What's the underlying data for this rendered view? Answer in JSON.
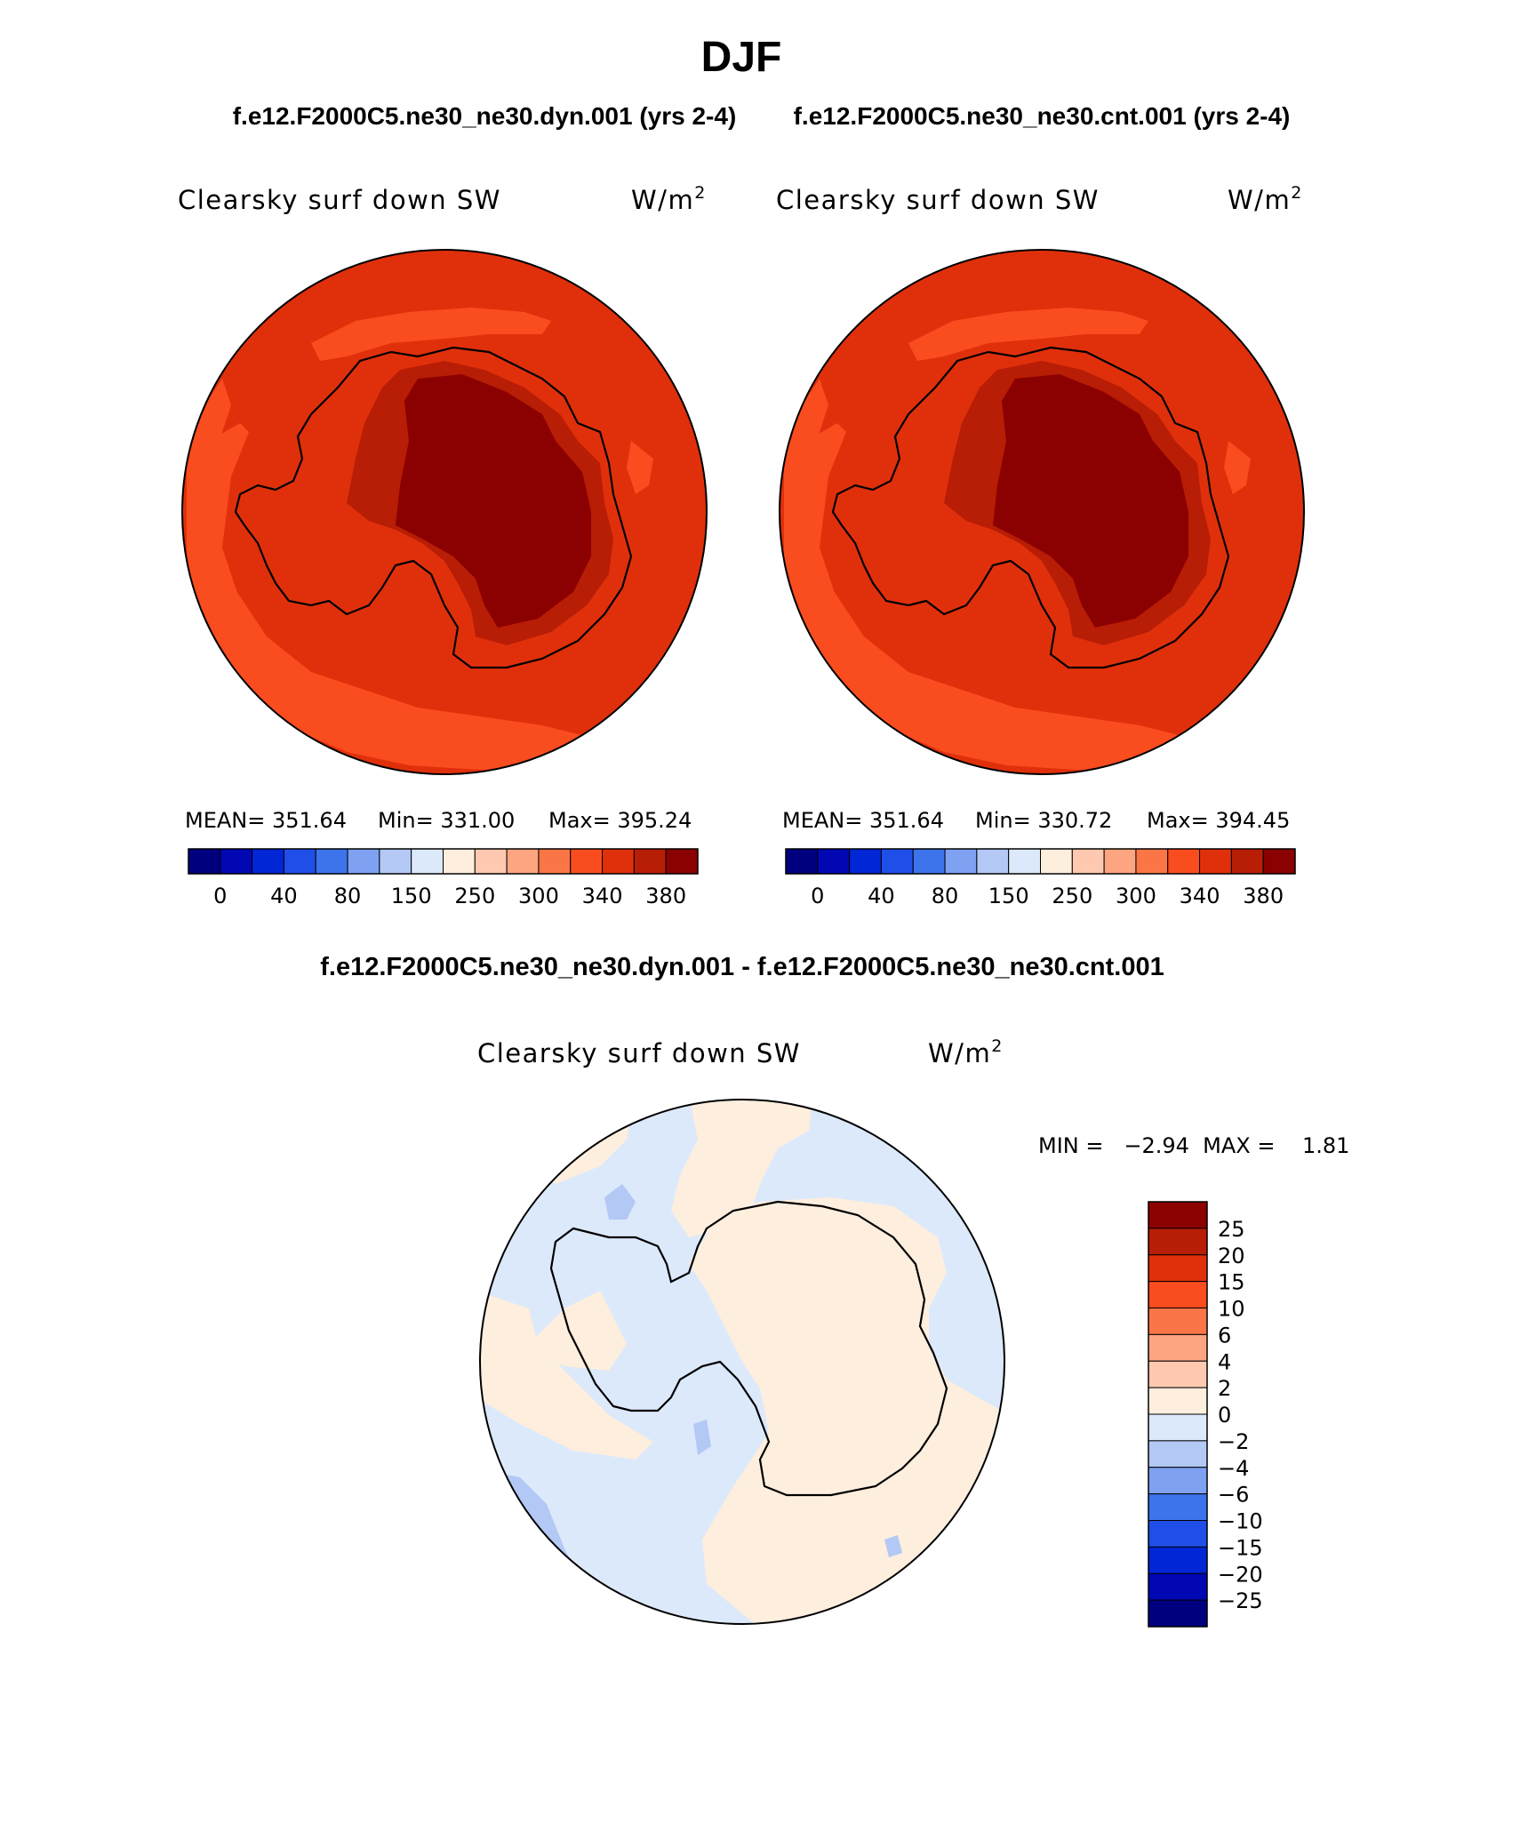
{
  "page": {
    "title": "DJF",
    "subtitle_left": "f.e12.F2000C5.ne30_ne30.dyn.001 (yrs 2-4)",
    "subtitle_right": "f.e12.F2000C5.ne30_ne30.cnt.001 (yrs 2-4)",
    "diff_title": "f.e12.F2000C5.ne30_ne30.dyn.001 - f.e12.F2000C5.ne30_ne30.cnt.001"
  },
  "panels": [
    {
      "variable": "Clearsky surf down SW",
      "units": "W/m",
      "units_exp": "2",
      "stats": {
        "mean": "MEAN= 351.64",
        "min": "Min= 331.00",
        "max": "Max= 395.24"
      }
    },
    {
      "variable": "Clearsky surf down SW",
      "units": "W/m",
      "units_exp": "2",
      "stats": {
        "mean": "MEAN= 351.64",
        "min": "Min= 330.72",
        "max": "Max= 394.45"
      }
    }
  ],
  "abs_colorbar": {
    "colors": [
      "#00007f",
      "#0007b3",
      "#0026d6",
      "#1f4fe8",
      "#3d74ec",
      "#7ea1f2",
      "#b3c8f5",
      "#dce9fb",
      "#feeede",
      "#fec9b0",
      "#fca580",
      "#fb7647",
      "#f94c1f",
      "#e0300b",
      "#b81d05",
      "#8b0000"
    ],
    "labels": [
      "0",
      "40",
      "80",
      "150",
      "250",
      "300",
      "340",
      "380"
    ]
  },
  "diff_panel": {
    "variable": "Clearsky surf down SW",
    "units": "W/m",
    "units_exp": "2",
    "minmax": "MIN =   −2.94  MAX =    1.81"
  },
  "diff_colorbar": {
    "colors_top_to_bottom": [
      "#8b0000",
      "#b81d05",
      "#e0300b",
      "#f94c1f",
      "#fb7647",
      "#fca580",
      "#fec9b0",
      "#feeede",
      "#dce9fb",
      "#b3c8f5",
      "#7ea1f2",
      "#3d74ec",
      "#1f4fe8",
      "#0026d6",
      "#0007b3",
      "#00007f"
    ],
    "labels": [
      "25",
      "20",
      "15",
      "10",
      "6",
      "4",
      "2",
      "0",
      "−2",
      "−4",
      "−6",
      "−10",
      "−15",
      "−20",
      "−25"
    ]
  },
  "map_colors": {
    "ocean_abs": "#e0300b",
    "ocean_abs_light": "#f94c1f",
    "ice_abs_mid": "#b81d05",
    "ice_abs_high": "#8b0000",
    "diff_pos": "#feeede",
    "diff_neg": "#dce9fb",
    "diff_neg2": "#b3c8f5"
  }
}
